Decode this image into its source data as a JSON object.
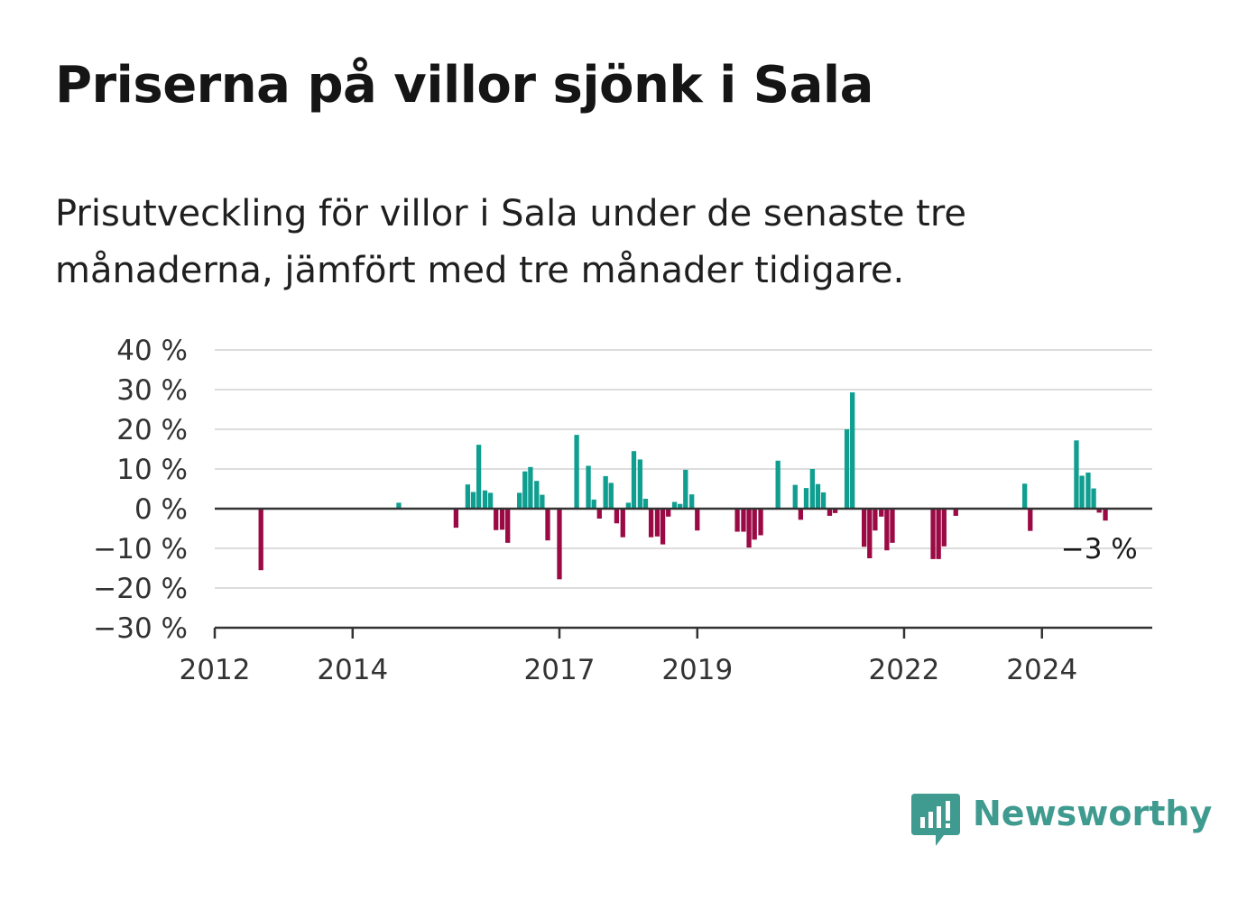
{
  "title": "Priserna på villor sjönk i Sala",
  "subtitle": "Prisutveckling för villor i Sala under de senaste tre månaderna, jämfört med tre månader tidigare.",
  "brand": {
    "name": "Newsworthy",
    "color": "#3f9a8f"
  },
  "colors": {
    "positive": "#0f9e90",
    "negative": "#9b0a45",
    "grid": "#dddddd",
    "axis": "#333333"
  },
  "chart_data": {
    "type": "bar",
    "title": "Priserna på villor sjönk i Sala",
    "xlabel": "",
    "ylabel": "",
    "ylim": [
      -30,
      40
    ],
    "yticks": [
      -30,
      -20,
      -10,
      0,
      10,
      20,
      30,
      40
    ],
    "ytick_labels": [
      "−30 %",
      "−20 %",
      "−10 %",
      "0 %",
      "10 %",
      "20 %",
      "30 %",
      "40 %"
    ],
    "xlim": [
      2012.0,
      2025.6
    ],
    "xticks": [
      2012,
      2014,
      2017,
      2019,
      2022,
      2024
    ],
    "grid": true,
    "annotation": {
      "text": "−3 %",
      "x": 2025.06,
      "y": -3
    },
    "x": [
      2012.67,
      2014.67,
      2015.5,
      2015.67,
      2015.75,
      2015.83,
      2015.92,
      2016.0,
      2016.08,
      2016.17,
      2016.25,
      2016.42,
      2016.5,
      2016.58,
      2016.67,
      2016.75,
      2016.83,
      2017.0,
      2017.25,
      2017.42,
      2017.5,
      2017.58,
      2017.67,
      2017.75,
      2017.83,
      2017.92,
      2018.0,
      2018.08,
      2018.17,
      2018.25,
      2018.33,
      2018.42,
      2018.5,
      2018.58,
      2018.67,
      2018.75,
      2018.83,
      2018.92,
      2019.0,
      2019.58,
      2019.67,
      2019.75,
      2019.83,
      2019.92,
      2020.17,
      2020.42,
      2020.5,
      2020.58,
      2020.67,
      2020.75,
      2020.83,
      2020.92,
      2021.0,
      2021.17,
      2021.25,
      2021.42,
      2021.5,
      2021.58,
      2021.67,
      2021.75,
      2021.83,
      2022.42,
      2022.5,
      2022.58,
      2022.75,
      2023.75,
      2023.83,
      2024.5,
      2024.58,
      2024.67,
      2024.75,
      2024.83,
      2024.92
    ],
    "values": [
      -15.5,
      1.5,
      -4.8,
      6.1,
      4.2,
      16.1,
      4.6,
      4.0,
      -5.4,
      -5.3,
      -8.6,
      4.0,
      9.4,
      10.5,
      7.0,
      3.5,
      -8.0,
      -17.8,
      18.6,
      10.8,
      2.3,
      -2.5,
      8.2,
      6.5,
      -3.7,
      -7.2,
      1.5,
      14.5,
      12.4,
      2.5,
      -7.2,
      -7.0,
      -9.0,
      -2.0,
      1.7,
      1.2,
      9.8,
      3.6,
      -5.5,
      -5.8,
      -5.8,
      -9.8,
      -7.8,
      -6.7,
      12.1,
      6.0,
      -2.8,
      5.2,
      10.0,
      6.2,
      4.1,
      -1.8,
      -1.1,
      20.0,
      29.3,
      -9.6,
      -12.5,
      -5.5,
      -2.0,
      -10.5,
      -8.6,
      -12.7,
      -12.7,
      -9.5,
      -1.8,
      6.3,
      -5.6,
      17.2,
      8.3,
      9.1,
      5.1,
      -1.0,
      -3.0
    ]
  }
}
